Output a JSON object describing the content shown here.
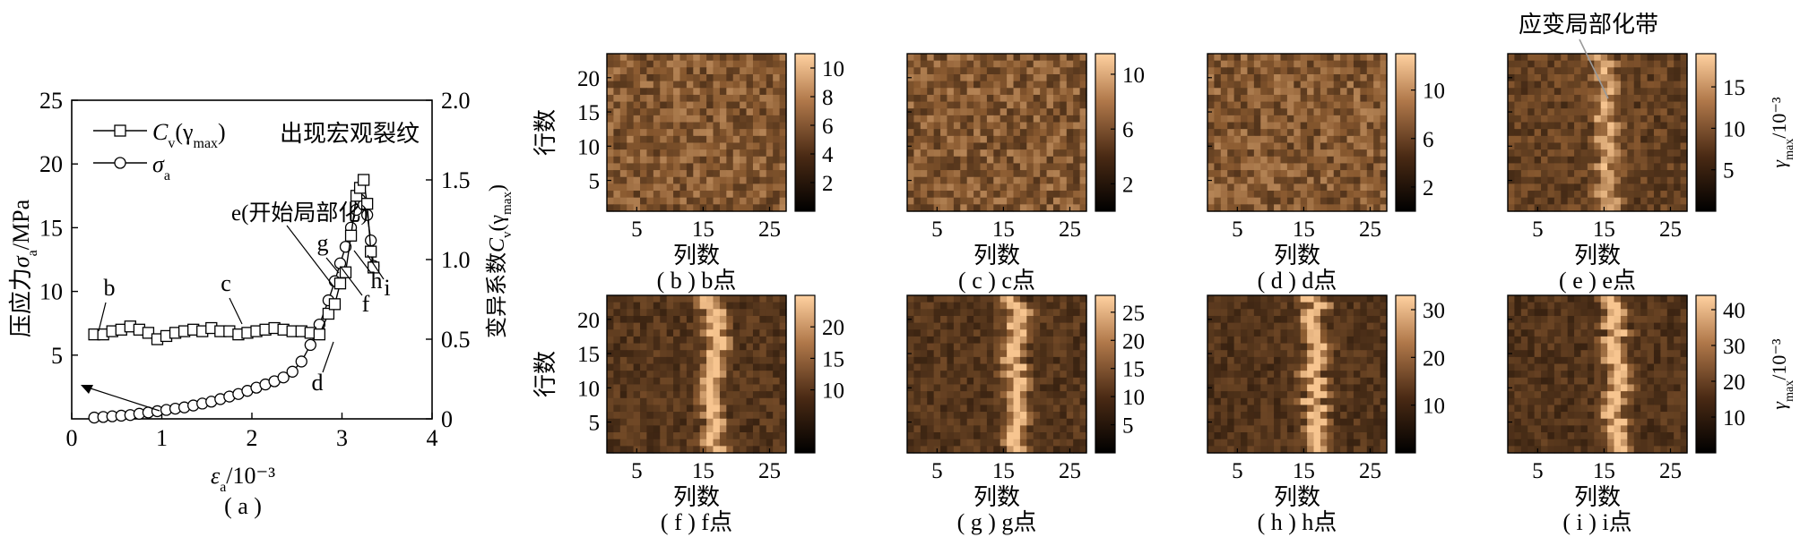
{
  "chart_data": [
    {
      "id": "a",
      "type": "line",
      "caption": "( a )",
      "xlabel": "ε",
      "xlabel_sub": "a",
      "xlabel_unit": "/10⁻³",
      "ylabel_left": "压应力σ",
      "ylabel_left_sub": "a",
      "ylabel_left_unit": "/MPa",
      "ylabel_right": "变异系数C",
      "ylabel_right_sub": "v",
      "ylabel_right_tail": "(γ",
      "ylabel_right_tail_sub": "max",
      "ylabel_right_end": ")",
      "xlim": [
        0,
        4
      ],
      "ylim_left": [
        0,
        25
      ],
      "ylim_right": [
        0,
        2.0
      ],
      "xticks": [
        "0",
        "1",
        "2",
        "3",
        "4"
      ],
      "yticks_left": [
        "5",
        "10",
        "15",
        "20",
        "25"
      ],
      "yticks_right": [
        "0",
        "0.5",
        "1.0",
        "1.5",
        "2.0"
      ],
      "legend": [
        {
          "label": "C",
          "sub": "v",
          "tail": "(γ",
          "tail_sub": "max",
          "end": ")",
          "marker": "square"
        },
        {
          "label": "σ",
          "sub": "a",
          "marker": "circle"
        }
      ],
      "annotations": {
        "b": "b",
        "c": "c",
        "d": "d",
        "e": "e(开始局部化)",
        "f": "f",
        "g": "g",
        "h": "h",
        "i": "i",
        "crack": "出现宏观裂纹"
      },
      "series": [
        {
          "name": "σa",
          "axis": "left",
          "x": [
            0.25,
            0.35,
            0.45,
            0.55,
            0.65,
            0.75,
            0.85,
            0.95,
            1.05,
            1.15,
            1.25,
            1.35,
            1.45,
            1.55,
            1.65,
            1.75,
            1.85,
            1.95,
            2.05,
            2.15,
            2.25,
            2.35,
            2.45,
            2.55,
            2.65,
            2.75,
            2.85,
            2.92,
            2.98,
            3.04,
            3.1,
            3.16,
            3.2,
            3.24,
            3.28,
            3.32,
            3.35
          ],
          "y": [
            0.1,
            0.15,
            0.2,
            0.25,
            0.3,
            0.4,
            0.5,
            0.6,
            0.7,
            0.8,
            0.9,
            1.05,
            1.2,
            1.35,
            1.55,
            1.75,
            1.95,
            2.2,
            2.45,
            2.7,
            2.95,
            3.25,
            3.7,
            4.5,
            5.8,
            7.4,
            9.3,
            10.8,
            12.2,
            13.5,
            15.0,
            16.4,
            17.2,
            16.8,
            16.0,
            14.0,
            12.0
          ]
        },
        {
          "name": "Cv(γmax)",
          "axis": "right",
          "x": [
            0.25,
            0.35,
            0.45,
            0.55,
            0.65,
            0.75,
            0.85,
            0.95,
            1.05,
            1.15,
            1.25,
            1.35,
            1.45,
            1.55,
            1.65,
            1.75,
            1.85,
            1.95,
            2.05,
            2.15,
            2.25,
            2.35,
            2.45,
            2.55,
            2.65,
            2.75,
            2.85,
            2.92,
            2.98,
            3.04,
            3.1,
            3.16,
            3.2,
            3.24,
            3.28,
            3.32,
            3.35
          ],
          "y": [
            0.53,
            0.53,
            0.55,
            0.56,
            0.58,
            0.56,
            0.54,
            0.5,
            0.52,
            0.54,
            0.55,
            0.56,
            0.55,
            0.57,
            0.55,
            0.55,
            0.53,
            0.54,
            0.55,
            0.56,
            0.57,
            0.56,
            0.55,
            0.55,
            0.54,
            0.53,
            0.66,
            0.72,
            0.85,
            0.92,
            1.15,
            1.4,
            1.45,
            1.5,
            1.35,
            1.05,
            0.95
          ]
        }
      ]
    },
    {
      "type": "heatmap",
      "panels": [
        {
          "id": "b",
          "caption": "( b ) b点",
          "cmax": 11,
          "cticks": [
            "2",
            "4",
            "6",
            "8",
            "10"
          ],
          "cvals": [
            2,
            4,
            6,
            8,
            10
          ],
          "band": 0,
          "cunit": false
        },
        {
          "id": "c",
          "caption": "( c ) c点",
          "cmax": 11.5,
          "cticks": [
            "2",
            "6",
            "10"
          ],
          "cvals": [
            2,
            6,
            10
          ],
          "band": 0,
          "cunit": false
        },
        {
          "id": "d",
          "caption": "( d ) d点",
          "cmax": 13,
          "cticks": [
            "2",
            "6",
            "10"
          ],
          "cvals": [
            2,
            6,
            10
          ],
          "band": 0,
          "cunit": false
        },
        {
          "id": "e",
          "caption": "( e ) e点",
          "cmax": 19,
          "cticks": [
            "5",
            "10",
            "15"
          ],
          "cvals": [
            5,
            10,
            15
          ],
          "band": 0.55,
          "cunit": true,
          "note": "应变局部化带"
        },
        {
          "id": "f",
          "caption": "( f ) f点",
          "cmax": 25,
          "cticks": [
            "10",
            "15",
            "20"
          ],
          "cvals": [
            10,
            15,
            20
          ],
          "band": 0.8,
          "cunit": false
        },
        {
          "id": "g",
          "caption": "( g ) g点",
          "cmax": 28,
          "cticks": [
            "5",
            "10",
            "15",
            "20",
            "25"
          ],
          "cvals": [
            5,
            10,
            15,
            20,
            25
          ],
          "band": 0.8,
          "cunit": false
        },
        {
          "id": "h",
          "caption": "( h ) h点",
          "cmax": 33,
          "cticks": [
            "10",
            "20",
            "30"
          ],
          "cvals": [
            10,
            20,
            30
          ],
          "band": 0.85,
          "cunit": false
        },
        {
          "id": "i",
          "caption": "( i ) i点",
          "cmax": 44,
          "cticks": [
            "10",
            "20",
            "30",
            "40"
          ],
          "cvals": [
            10,
            20,
            30,
            40
          ],
          "band": 0.85,
          "cunit": true
        }
      ],
      "xticks": [
        "5",
        "15",
        "25"
      ],
      "xtick_vals": [
        5,
        15,
        25
      ],
      "yticks": [
        "5",
        "10",
        "15",
        "20"
      ],
      "ytick_vals": [
        5,
        10,
        15,
        20
      ],
      "xlabel": "列数",
      "ylabel": "行数",
      "cbar_label": "γ",
      "cbar_label_sub": "max",
      "cbar_label_unit": "/10⁻³",
      "colors": {
        "low": "#1a0d05",
        "mid": "#8a5a30",
        "high": "#f7c590"
      }
    }
  ]
}
